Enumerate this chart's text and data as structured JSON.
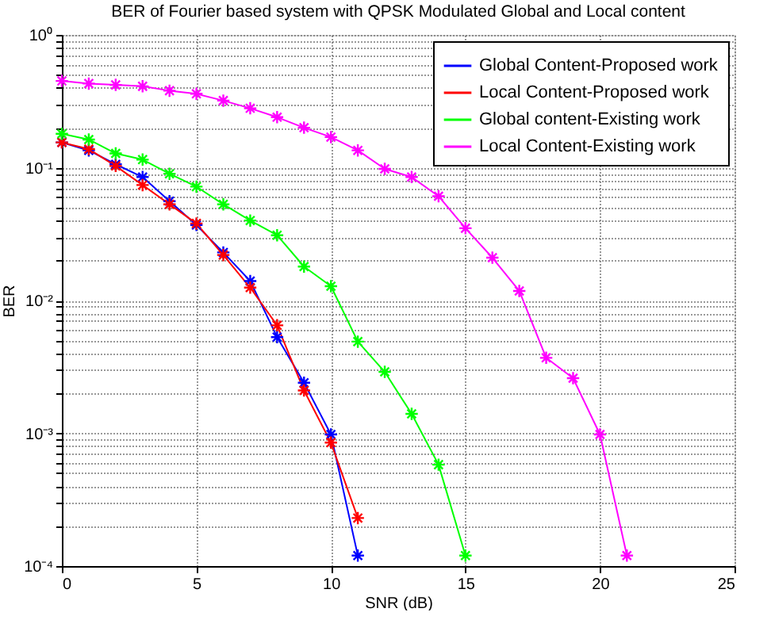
{
  "chart_data": {
    "type": "line",
    "title": "BER of Fourier based system with QPSK Modulated Global and Local content",
    "xlabel": "SNR (dB)",
    "ylabel": "BER",
    "log": "y",
    "grid": true,
    "legend": "top right",
    "marker": "cross",
    "line_style": "solid",
    "xlim": [
      0,
      25
    ],
    "xticks": [
      0,
      5,
      10,
      15,
      20,
      25
    ],
    "ylim": [
      0.0001,
      1
    ],
    "yticks": [
      {
        "value": 0.0001,
        "label": "10⁻⁴"
      },
      {
        "value": 0.0002,
        "label": null
      },
      {
        "value": 0.0003,
        "label": null
      },
      {
        "value": 0.0004,
        "label": null
      },
      {
        "value": 0.0005,
        "label": null
      },
      {
        "value": 0.0006,
        "label": null
      },
      {
        "value": 0.0007,
        "label": null
      },
      {
        "value": 0.0008,
        "label": null
      },
      {
        "value": 0.0009,
        "label": null
      },
      {
        "value": 0.001,
        "label": "10⁻³"
      },
      {
        "value": 0.002,
        "label": null
      },
      {
        "value": 0.003,
        "label": null
      },
      {
        "value": 0.004,
        "label": null
      },
      {
        "value": 0.005,
        "label": null
      },
      {
        "value": 0.006,
        "label": null
      },
      {
        "value": 0.007,
        "label": null
      },
      {
        "value": 0.008,
        "label": null
      },
      {
        "value": 0.009,
        "label": null
      },
      {
        "value": 0.01,
        "label": "10⁻²"
      },
      {
        "value": 0.02,
        "label": null
      },
      {
        "value": 0.03,
        "label": null
      },
      {
        "value": 0.04,
        "label": null
      },
      {
        "value": 0.05,
        "label": null
      },
      {
        "value": 0.06,
        "label": null
      },
      {
        "value": 0.07,
        "label": null
      },
      {
        "value": 0.08,
        "label": null
      },
      {
        "value": 0.09,
        "label": null
      },
      {
        "value": 0.1,
        "label": "10⁻¹"
      },
      {
        "value": 0.2,
        "label": null
      },
      {
        "value": 0.3,
        "label": null
      },
      {
        "value": 0.4,
        "label": null
      },
      {
        "value": 0.5,
        "label": null
      },
      {
        "value": 0.6,
        "label": null
      },
      {
        "value": 0.7,
        "label": null
      },
      {
        "value": 0.8,
        "label": null
      },
      {
        "value": 0.9,
        "label": null
      },
      {
        "value": 1,
        "label": "10⁰"
      }
    ],
    "series": [
      {
        "name": "Global Content-Proposed work",
        "color": "#0000ff",
        "x": [
          0,
          1,
          2,
          3,
          4,
          5,
          6,
          7,
          8,
          9,
          10,
          11
        ],
        "values": [
          0.155,
          0.135,
          0.106,
          0.085,
          0.056,
          0.037,
          0.023,
          0.014,
          0.0053,
          0.0024,
          0.00098,
          0.00012
        ]
      },
      {
        "name": "Local Content-Proposed work",
        "color": "#ff0000",
        "x": [
          0,
          1,
          2,
          3,
          4,
          5,
          6,
          7,
          8,
          9,
          10,
          11
        ],
        "values": [
          0.155,
          0.138,
          0.103,
          0.074,
          0.053,
          0.038,
          0.022,
          0.0125,
          0.0065,
          0.0021,
          0.00085,
          0.00023
        ]
      },
      {
        "name": "Global content-Existing work",
        "color": "#00ff00",
        "x": [
          0,
          1,
          2,
          3,
          4,
          5,
          6,
          7,
          8,
          9,
          10,
          11,
          12,
          13,
          14,
          15
        ],
        "values": [
          0.18,
          0.163,
          0.128,
          0.115,
          0.09,
          0.072,
          0.053,
          0.04,
          0.031,
          0.018,
          0.0128,
          0.0049,
          0.0029,
          0.0014,
          0.00058,
          0.00012
        ]
      },
      {
        "name": "Local Content-Existing work",
        "color": "#ff00ff",
        "x": [
          0,
          1,
          2,
          3,
          4,
          5,
          6,
          7,
          8,
          9,
          10,
          11,
          12,
          13,
          14,
          15,
          16,
          17,
          18,
          19,
          20,
          21
        ],
        "values": [
          0.45,
          0.43,
          0.42,
          0.41,
          0.38,
          0.36,
          0.32,
          0.28,
          0.24,
          0.2,
          0.17,
          0.135,
          0.098,
          0.085,
          0.061,
          0.035,
          0.021,
          0.0118,
          0.0037,
          0.0026,
          0.00098,
          0.00012
        ]
      }
    ]
  }
}
